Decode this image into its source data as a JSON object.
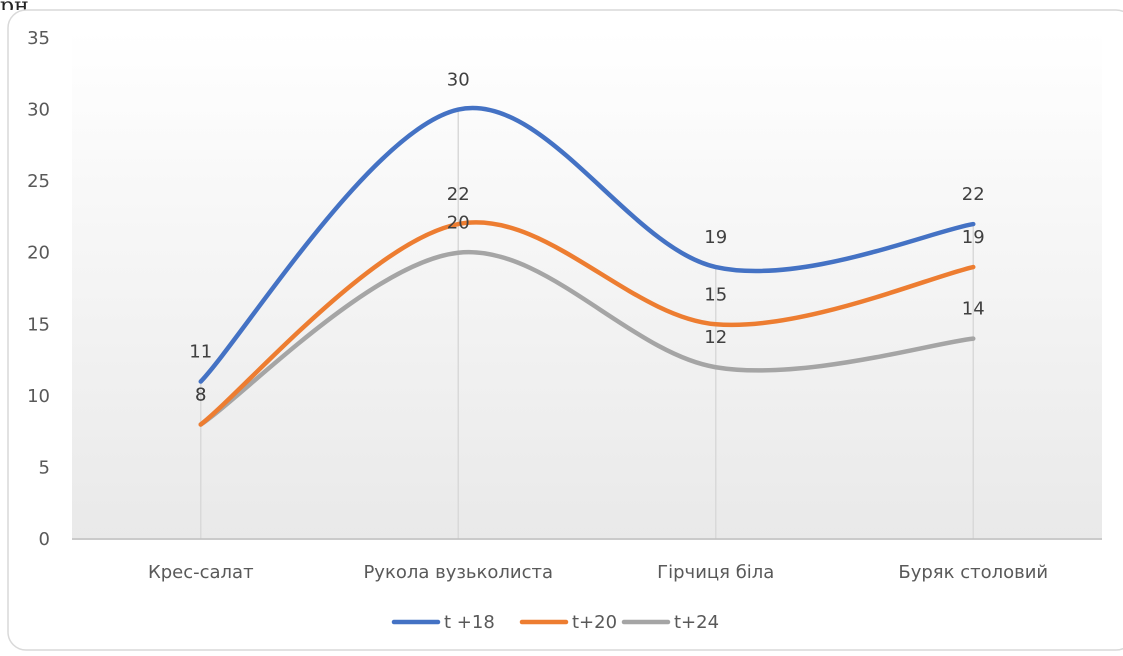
{
  "header_fragment": "рн                      ,",
  "chart_data": {
    "type": "line",
    "smooth": true,
    "categories": [
      "Крес-салат",
      "Рукола вузьколиста",
      "Гірчиця  біла",
      "Буряк столовий"
    ],
    "series": [
      {
        "name": "t +18",
        "values": [
          11,
          30,
          19,
          22
        ],
        "color": "#4472C4"
      },
      {
        "name": "t+20",
        "values": [
          8,
          22,
          15,
          19
        ],
        "color": "#ED7D31"
      },
      {
        "name": "t+24",
        "values": [
          8,
          20,
          12,
          14
        ],
        "color": "#A5A5A5"
      }
    ],
    "ylim": [
      0,
      35
    ],
    "yticks": [
      0,
      5,
      10,
      15,
      20,
      25,
      30,
      35
    ],
    "title": "",
    "xlabel": "",
    "ylabel": "",
    "grid": "vertical drop lines at categories",
    "legend_position": "bottom",
    "data_labels": true
  }
}
